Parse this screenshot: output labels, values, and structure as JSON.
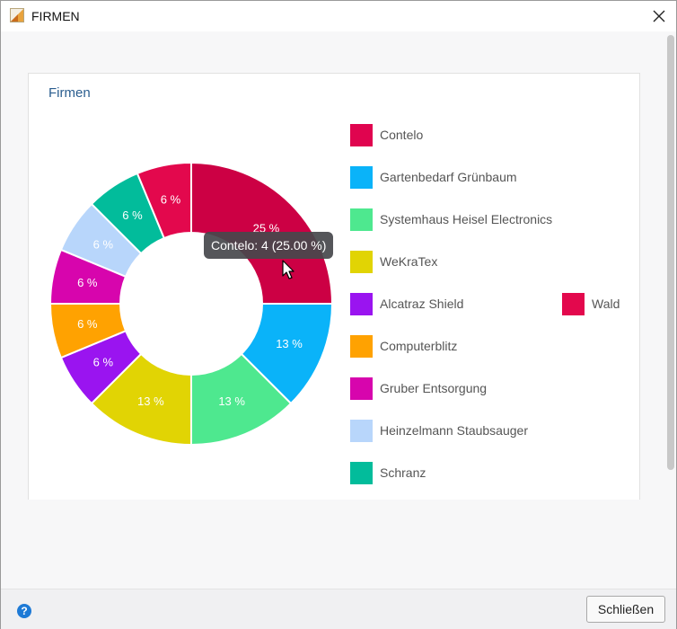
{
  "window": {
    "title": "FIRMEN",
    "close_icon": "close-icon",
    "app_icon": "app-icon"
  },
  "panel": {
    "title": "Firmen"
  },
  "tooltip": {
    "text": "Contelo: 4 (25.00 %)"
  },
  "footer": {
    "help_icon": "help-icon",
    "help_glyph": "?",
    "close_label": "Schließen"
  },
  "chart_data": {
    "type": "pie",
    "donut": true,
    "title": "Firmen",
    "series": [
      {
        "name": "Contelo",
        "value": 4,
        "percent_label": "25 %",
        "color": "#e0044f",
        "color_drawn": "#cc0044"
      },
      {
        "name": "Gartenbedarf Grünbaum",
        "value": 2,
        "percent_label": "13 %",
        "color": "#0ab3f9"
      },
      {
        "name": "Systemhaus Heisel Electronics",
        "value": 2,
        "percent_label": "13 %",
        "color": "#4ee88f"
      },
      {
        "name": "WeKraTex",
        "value": 2,
        "percent_label": "13 %",
        "color": "#e1d404"
      },
      {
        "name": "Alcatraz Shield",
        "value": 1,
        "percent_label": "6 %",
        "color": "#9a14f0"
      },
      {
        "name": "Computerblitz",
        "value": 1,
        "percent_label": "6 %",
        "color": "#ffa201"
      },
      {
        "name": "Gruber Entsorgung",
        "value": 1,
        "percent_label": "6 %",
        "color": "#d705ad"
      },
      {
        "name": "Heinzelmann Staubsauger",
        "value": 1,
        "percent_label": "6 %",
        "color": "#b8d6fb"
      },
      {
        "name": "Schranz",
        "value": 1,
        "percent_label": "6 %",
        "color": "#02bc9b"
      },
      {
        "name": "Wald",
        "value": 1,
        "percent_label": "6 %",
        "color": "#e3084d"
      }
    ],
    "total": 16,
    "legend": "right",
    "highlighted": "Contelo"
  }
}
